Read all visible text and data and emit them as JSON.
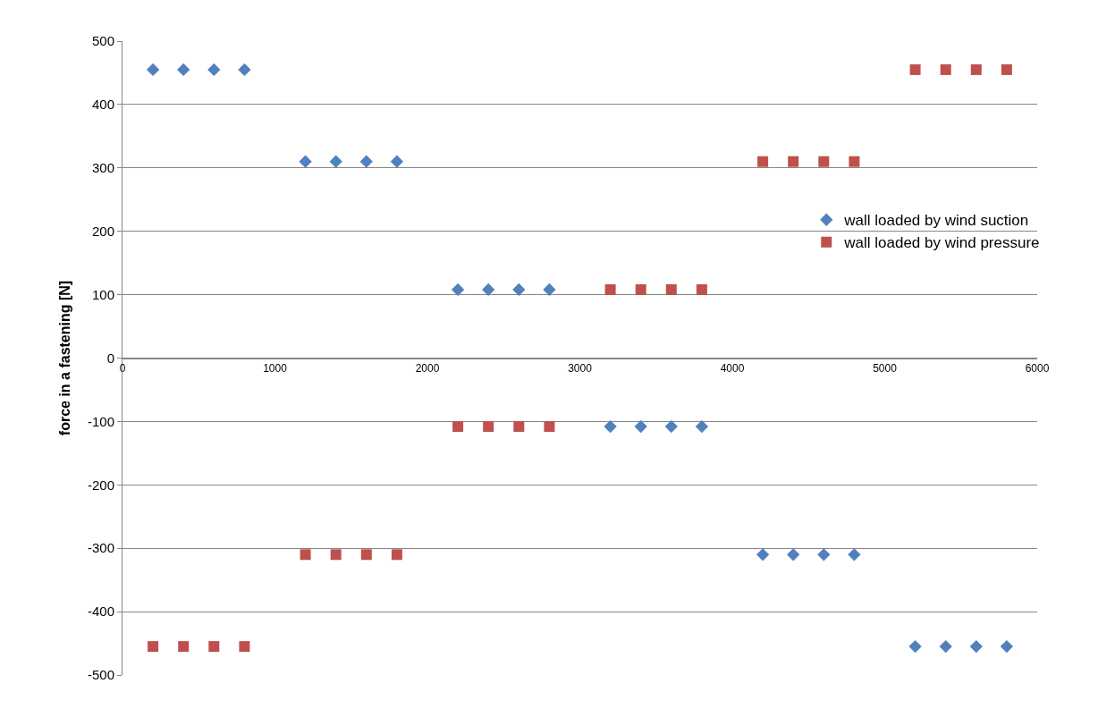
{
  "chart_data": {
    "type": "scatter",
    "ylabel": "force in a fastening [N]",
    "xlim": [
      0,
      6000
    ],
    "xticks": [
      0,
      1000,
      2000,
      3000,
      4000,
      5000,
      6000
    ],
    "ylim": [
      -500,
      500
    ],
    "yticks": [
      -500,
      -400,
      -300,
      -200,
      -100,
      0,
      100,
      200,
      300,
      400,
      500
    ],
    "grid": "y",
    "legend": "right",
    "series": [
      {
        "name": "wall loaded by wind suction",
        "color": "#4f81bd",
        "marker": "diamond",
        "x": [
          200,
          400,
          600,
          800,
          1200,
          1400,
          1600,
          1800,
          2200,
          2400,
          2600,
          2800,
          3200,
          3400,
          3600,
          3800,
          4200,
          4400,
          4600,
          4800,
          5200,
          5400,
          5600,
          5800
        ],
        "values": [
          455,
          455,
          455,
          455,
          310,
          310,
          310,
          310,
          108,
          108,
          108,
          108,
          -108,
          -108,
          -108,
          -108,
          -310,
          -310,
          -310,
          -310,
          -455,
          -455,
          -455,
          -455
        ]
      },
      {
        "name": "wall loaded by wind pressure",
        "color": "#c0504d",
        "marker": "square",
        "x": [
          200,
          400,
          600,
          800,
          1200,
          1400,
          1600,
          1800,
          2200,
          2400,
          2600,
          2800,
          3200,
          3400,
          3600,
          3800,
          4200,
          4400,
          4600,
          4800,
          5200,
          5400,
          5600,
          5800
        ],
        "values": [
          -455,
          -455,
          -455,
          -455,
          -310,
          -310,
          -310,
          -310,
          -108,
          -108,
          -108,
          -108,
          108,
          108,
          108,
          108,
          310,
          310,
          310,
          310,
          455,
          455,
          455,
          455
        ]
      }
    ]
  }
}
